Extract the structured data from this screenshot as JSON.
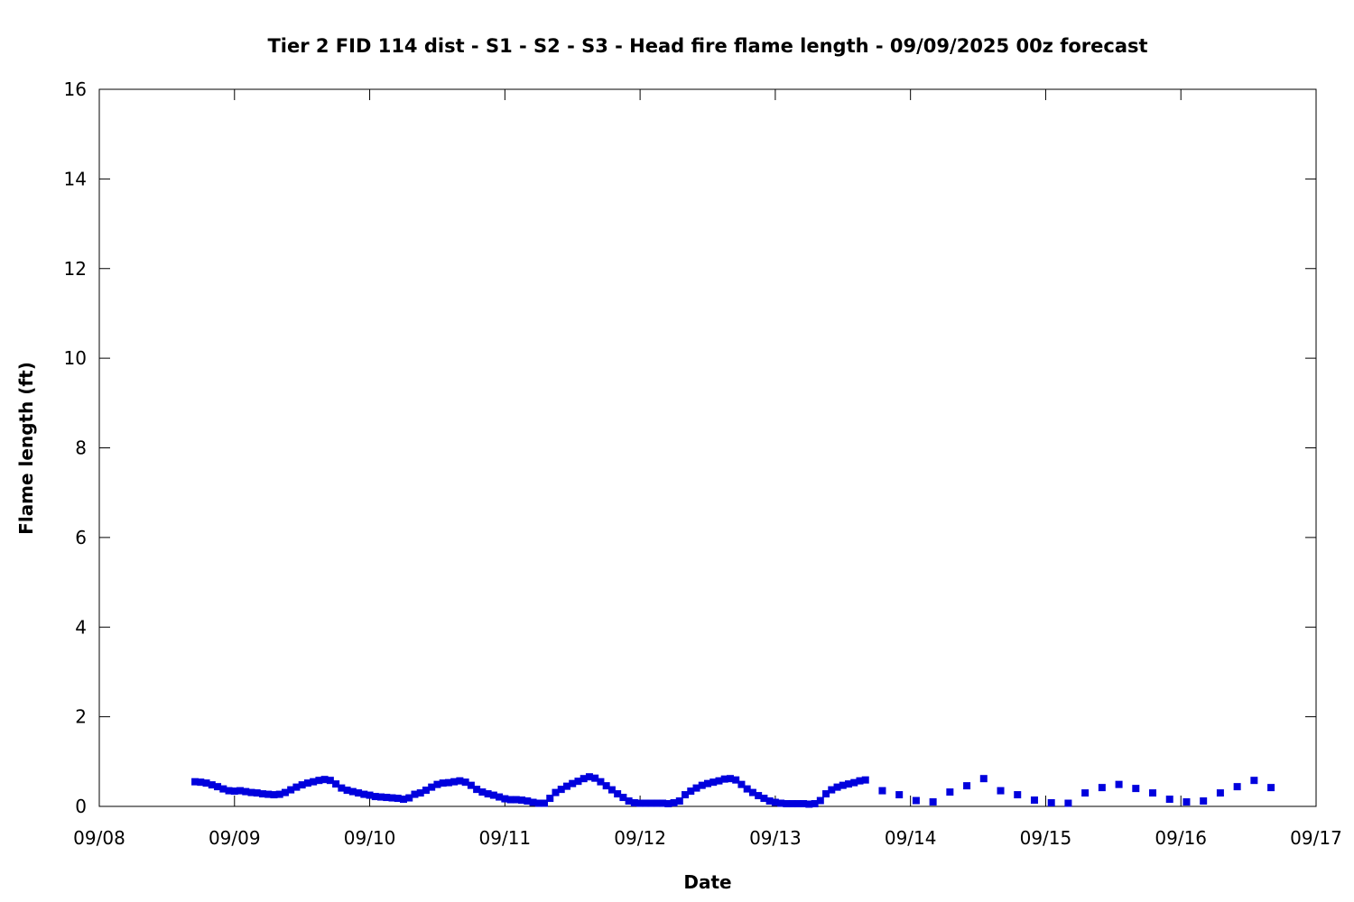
{
  "chart_data": {
    "type": "scatter",
    "title": "Tier 2 FID 114 dist - S1 - S2 - S3 - Head fire flame length - 09/09/2025 00z forecast",
    "xlabel": "Date",
    "ylabel": "Flame length (ft)",
    "x_ticks": [
      "09/08",
      "09/09",
      "09/10",
      "09/11",
      "09/12",
      "09/13",
      "09/14",
      "09/15",
      "09/16",
      "09/17"
    ],
    "y_ticks": [
      "0",
      "2",
      "4",
      "6",
      "8",
      "10",
      "12",
      "14",
      "16"
    ],
    "xlim": [
      "09/08 00:00",
      "09/17 00:00"
    ],
    "ylim": [
      0,
      16
    ],
    "grid": false,
    "marker_color": "#0000dd",
    "marker": "square",
    "series": [
      {
        "points": [
          [
            "09/08 17:00",
            0.55
          ],
          [
            "09/08 18:00",
            0.54
          ],
          [
            "09/08 19:00",
            0.52
          ],
          [
            "09/08 20:00",
            0.48
          ],
          [
            "09/08 21:00",
            0.44
          ],
          [
            "09/08 22:00",
            0.39
          ],
          [
            "09/08 23:00",
            0.35
          ],
          [
            "09/09 00:00",
            0.34
          ],
          [
            "09/09 01:00",
            0.35
          ],
          [
            "09/09 02:00",
            0.33
          ],
          [
            "09/09 03:00",
            0.31
          ],
          [
            "09/09 04:00",
            0.3
          ],
          [
            "09/09 05:00",
            0.28
          ],
          [
            "09/09 06:00",
            0.27
          ],
          [
            "09/09 07:00",
            0.26
          ],
          [
            "09/09 08:00",
            0.27
          ],
          [
            "09/09 09:00",
            0.31
          ],
          [
            "09/09 10:00",
            0.37
          ],
          [
            "09/09 11:00",
            0.43
          ],
          [
            "09/09 12:00",
            0.48
          ],
          [
            "09/09 13:00",
            0.52
          ],
          [
            "09/09 14:00",
            0.55
          ],
          [
            "09/09 15:00",
            0.58
          ],
          [
            "09/09 16:00",
            0.6
          ],
          [
            "09/09 17:00",
            0.58
          ],
          [
            "09/09 18:00",
            0.5
          ],
          [
            "09/09 19:00",
            0.41
          ],
          [
            "09/09 20:00",
            0.36
          ],
          [
            "09/09 21:00",
            0.33
          ],
          [
            "09/09 22:00",
            0.3
          ],
          [
            "09/09 23:00",
            0.27
          ],
          [
            "09/10 00:00",
            0.25
          ],
          [
            "09/10 01:00",
            0.22
          ],
          [
            "09/10 02:00",
            0.21
          ],
          [
            "09/10 03:00",
            0.2
          ],
          [
            "09/10 04:00",
            0.19
          ],
          [
            "09/10 05:00",
            0.18
          ],
          [
            "09/10 06:00",
            0.16
          ],
          [
            "09/10 07:00",
            0.19
          ],
          [
            "09/10 08:00",
            0.27
          ],
          [
            "09/10 09:00",
            0.3
          ],
          [
            "09/10 10:00",
            0.36
          ],
          [
            "09/10 11:00",
            0.43
          ],
          [
            "09/10 12:00",
            0.49
          ],
          [
            "09/10 13:00",
            0.52
          ],
          [
            "09/10 14:00",
            0.53
          ],
          [
            "09/10 15:00",
            0.55
          ],
          [
            "09/10 16:00",
            0.57
          ],
          [
            "09/10 17:00",
            0.54
          ],
          [
            "09/10 18:00",
            0.47
          ],
          [
            "09/10 19:00",
            0.38
          ],
          [
            "09/10 20:00",
            0.32
          ],
          [
            "09/10 21:00",
            0.28
          ],
          [
            "09/10 22:00",
            0.25
          ],
          [
            "09/10 23:00",
            0.21
          ],
          [
            "09/11 00:00",
            0.17
          ],
          [
            "09/11 01:00",
            0.15
          ],
          [
            "09/11 02:00",
            0.15
          ],
          [
            "09/11 03:00",
            0.14
          ],
          [
            "09/11 04:00",
            0.12
          ],
          [
            "09/11 05:00",
            0.09
          ],
          [
            "09/11 06:00",
            0.07
          ],
          [
            "09/11 07:00",
            0.07
          ],
          [
            "09/11 08:00",
            0.18
          ],
          [
            "09/11 09:00",
            0.31
          ],
          [
            "09/11 10:00",
            0.38
          ],
          [
            "09/11 11:00",
            0.45
          ],
          [
            "09/11 12:00",
            0.51
          ],
          [
            "09/11 13:00",
            0.56
          ],
          [
            "09/11 14:00",
            0.62
          ],
          [
            "09/11 15:00",
            0.66
          ],
          [
            "09/11 16:00",
            0.63
          ],
          [
            "09/11 17:00",
            0.55
          ],
          [
            "09/11 18:00",
            0.46
          ],
          [
            "09/11 19:00",
            0.37
          ],
          [
            "09/11 20:00",
            0.28
          ],
          [
            "09/11 21:00",
            0.2
          ],
          [
            "09/11 22:00",
            0.12
          ],
          [
            "09/11 23:00",
            0.08
          ],
          [
            "09/12 00:00",
            0.07
          ],
          [
            "09/12 01:00",
            0.07
          ],
          [
            "09/12 02:00",
            0.07
          ],
          [
            "09/12 03:00",
            0.07
          ],
          [
            "09/12 04:00",
            0.07
          ],
          [
            "09/12 05:00",
            0.06
          ],
          [
            "09/12 06:00",
            0.08
          ],
          [
            "09/12 07:00",
            0.12
          ],
          [
            "09/12 08:00",
            0.26
          ],
          [
            "09/12 09:00",
            0.34
          ],
          [
            "09/12 10:00",
            0.41
          ],
          [
            "09/12 11:00",
            0.47
          ],
          [
            "09/12 12:00",
            0.51
          ],
          [
            "09/12 13:00",
            0.54
          ],
          [
            "09/12 14:00",
            0.57
          ],
          [
            "09/12 15:00",
            0.61
          ],
          [
            "09/12 16:00",
            0.62
          ],
          [
            "09/12 17:00",
            0.59
          ],
          [
            "09/12 18:00",
            0.49
          ],
          [
            "09/12 19:00",
            0.39
          ],
          [
            "09/12 20:00",
            0.31
          ],
          [
            "09/12 21:00",
            0.24
          ],
          [
            "09/12 22:00",
            0.18
          ],
          [
            "09/12 23:00",
            0.12
          ],
          [
            "09/13 00:00",
            0.09
          ],
          [
            "09/13 01:00",
            0.07
          ],
          [
            "09/13 02:00",
            0.06
          ],
          [
            "09/13 03:00",
            0.06
          ],
          [
            "09/13 04:00",
            0.06
          ],
          [
            "09/13 05:00",
            0.06
          ],
          [
            "09/13 06:00",
            0.05
          ],
          [
            "09/13 07:00",
            0.06
          ],
          [
            "09/13 08:00",
            0.13
          ],
          [
            "09/13 09:00",
            0.28
          ],
          [
            "09/13 10:00",
            0.37
          ],
          [
            "09/13 11:00",
            0.43
          ],
          [
            "09/13 12:00",
            0.47
          ],
          [
            "09/13 13:00",
            0.5
          ],
          [
            "09/13 14:00",
            0.53
          ],
          [
            "09/13 15:00",
            0.57
          ],
          [
            "09/13 16:00",
            0.59
          ],
          [
            "09/13 19:00",
            0.35
          ],
          [
            "09/13 22:00",
            0.26
          ],
          [
            "09/14 01:00",
            0.13
          ],
          [
            "09/14 04:00",
            0.1
          ],
          [
            "09/14 07:00",
            0.32
          ],
          [
            "09/14 10:00",
            0.46
          ],
          [
            "09/14 13:00",
            0.62
          ],
          [
            "09/14 16:00",
            0.35
          ],
          [
            "09/14 19:00",
            0.26
          ],
          [
            "09/14 22:00",
            0.14
          ],
          [
            "09/15 01:00",
            0.08
          ],
          [
            "09/15 04:00",
            0.07
          ],
          [
            "09/15 07:00",
            0.3
          ],
          [
            "09/15 10:00",
            0.42
          ],
          [
            "09/15 13:00",
            0.49
          ],
          [
            "09/15 16:00",
            0.4
          ],
          [
            "09/15 19:00",
            0.3
          ],
          [
            "09/15 22:00",
            0.16
          ],
          [
            "09/16 01:00",
            0.1
          ],
          [
            "09/16 04:00",
            0.12
          ],
          [
            "09/16 07:00",
            0.3
          ],
          [
            "09/16 10:00",
            0.44
          ],
          [
            "09/16 13:00",
            0.58
          ],
          [
            "09/16 16:00",
            0.42
          ]
        ]
      }
    ]
  }
}
